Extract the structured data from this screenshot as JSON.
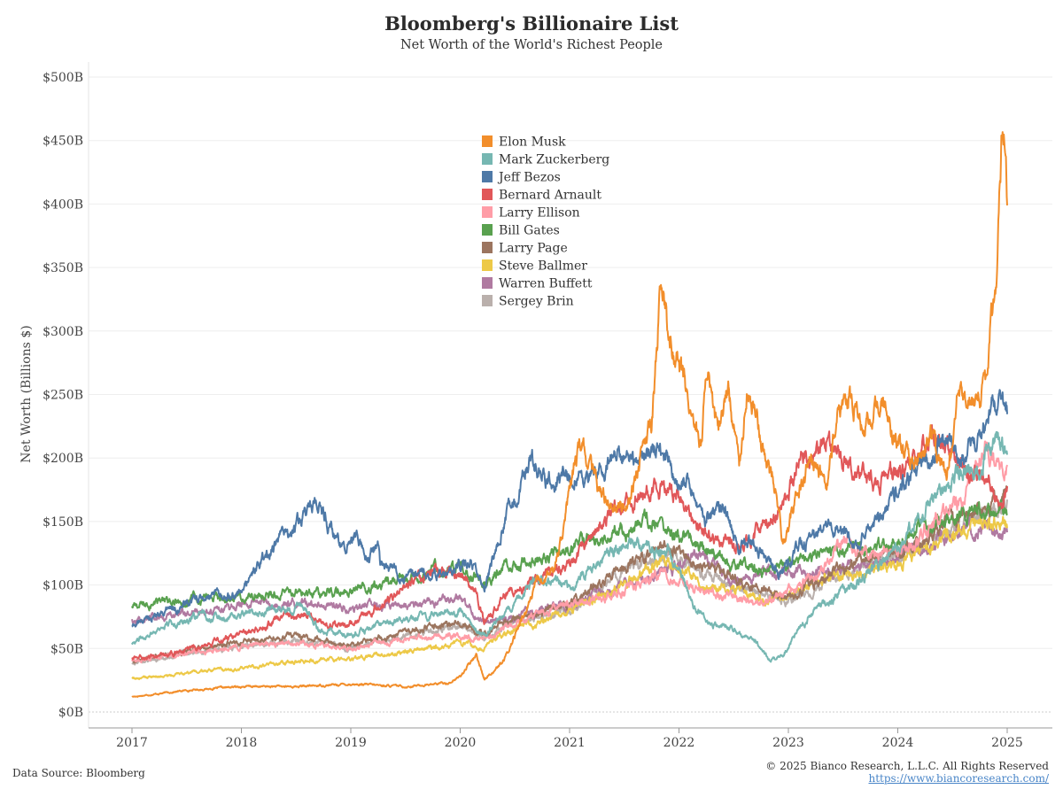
{
  "chart_data": {
    "type": "line",
    "title": "Bloomberg's Billionaire List",
    "subtitle": "Net Worth of the World's Richest People",
    "ylabel": "Net Worth (Billions $)",
    "xlabel": "",
    "xlim": [
      2017.0,
      2025.3
    ],
    "ylim": [
      0,
      500
    ],
    "y_ticks": [
      0,
      50,
      100,
      150,
      200,
      250,
      300,
      350,
      400,
      450,
      500
    ],
    "y_tick_labels": [
      "$0B",
      "$50B",
      "$100B",
      "$150B",
      "$200B",
      "$250B",
      "$300B",
      "$350B",
      "$400B",
      "$450B",
      "$500B"
    ],
    "x_ticks": [
      2017,
      2018,
      2019,
      2020,
      2021,
      2022,
      2023,
      2024,
      2025
    ],
    "x_tick_labels": [
      "2017",
      "2018",
      "2019",
      "2020",
      "2021",
      "2022",
      "2023",
      "2024",
      "2025"
    ],
    "grid": true,
    "legend_position": "top-center",
    "series": [
      {
        "name": "Elon Musk",
        "color": "#f28e2b",
        "x": [
          2017.0,
          2017.5,
          2018.0,
          2018.5,
          2019.0,
          2019.5,
          2019.9,
          2020.0,
          2020.15,
          2020.22,
          2020.4,
          2020.55,
          2020.7,
          2020.85,
          2020.95,
          2021.05,
          2021.1,
          2021.3,
          2021.5,
          2021.65,
          2021.75,
          2021.8,
          2021.83,
          2021.9,
          2022.0,
          2022.1,
          2022.2,
          2022.26,
          2022.35,
          2022.45,
          2022.55,
          2022.62,
          2022.75,
          2022.85,
          2022.9,
          2022.95,
          2023.0,
          2023.1,
          2023.2,
          2023.35,
          2023.45,
          2023.55,
          2023.7,
          2023.85,
          2024.0,
          2024.15,
          2024.3,
          2024.45,
          2024.55,
          2024.62,
          2024.7,
          2024.75,
          2024.8,
          2024.85,
          2024.9,
          2024.93,
          2024.96,
          2025.0
        ],
        "y": [
          12,
          17,
          20,
          20,
          22,
          20,
          23,
          28,
          45,
          26,
          40,
          70,
          100,
          110,
          150,
          195,
          210,
          170,
          160,
          200,
          225,
          290,
          340,
          300,
          275,
          240,
          210,
          270,
          220,
          255,
          195,
          260,
          215,
          185,
          165,
          135,
          145,
          180,
          200,
          180,
          230,
          250,
          220,
          245,
          210,
          190,
          215,
          185,
          250,
          240,
          245,
          250,
          260,
          315,
          345,
          420,
          480,
          415
        ]
      },
      {
        "name": "Mark Zuckerberg",
        "color": "#76b7b2",
        "x": [
          2017.0,
          2017.3,
          2017.6,
          2018.0,
          2018.3,
          2018.55,
          2018.7,
          2019.0,
          2019.3,
          2019.6,
          2020.0,
          2020.2,
          2020.5,
          2020.7,
          2021.0,
          2021.3,
          2021.6,
          2021.75,
          2021.9,
          2022.1,
          2022.3,
          2022.5,
          2022.7,
          2022.83,
          2022.95,
          2023.1,
          2023.3,
          2023.6,
          2023.9,
          2024.1,
          2024.3,
          2024.55,
          2024.75,
          2024.9,
          2025.0
        ],
        "y": [
          55,
          68,
          75,
          75,
          80,
          85,
          65,
          60,
          70,
          75,
          80,
          60,
          85,
          105,
          100,
          120,
          135,
          125,
          130,
          90,
          70,
          65,
          55,
          40,
          45,
          65,
          85,
          100,
          120,
          140,
          170,
          185,
          195,
          215,
          210
        ]
      },
      {
        "name": "Jeff Bezos",
        "color": "#4e79a7",
        "x": [
          2017.0,
          2017.3,
          2017.6,
          2018.0,
          2018.2,
          2018.4,
          2018.55,
          2018.7,
          2018.9,
          2019.05,
          2019.15,
          2019.25,
          2019.27,
          2019.4,
          2019.6,
          2019.9,
          2020.1,
          2020.22,
          2020.4,
          2020.55,
          2020.65,
          2020.8,
          2021.0,
          2021.2,
          2021.45,
          2021.55,
          2021.7,
          2021.85,
          2022.0,
          2022.1,
          2022.25,
          2022.4,
          2022.55,
          2022.65,
          2022.8,
          2022.95,
          2023.1,
          2023.3,
          2023.45,
          2023.6,
          2023.8,
          2024.0,
          2024.2,
          2024.4,
          2024.55,
          2024.7,
          2024.85,
          2024.95,
          2025.0
        ],
        "y": [
          68,
          80,
          88,
          95,
          120,
          140,
          150,
          165,
          130,
          140,
          120,
          135,
          115,
          110,
          105,
          112,
          120,
          100,
          150,
          175,
          200,
          180,
          190,
          185,
          205,
          195,
          200,
          205,
          180,
          180,
          150,
          160,
          130,
          135,
          120,
          110,
          130,
          145,
          145,
          135,
          150,
          175,
          195,
          210,
          200,
          210,
          235,
          250,
          240
        ]
      },
      {
        "name": "Bernard Arnault",
        "color": "#e15759",
        "x": [
          2017.0,
          2017.3,
          2017.6,
          2018.0,
          2018.3,
          2018.6,
          2018.8,
          2019.0,
          2019.3,
          2019.5,
          2019.7,
          2020.0,
          2020.15,
          2020.22,
          2020.4,
          2020.6,
          2020.8,
          2021.0,
          2021.2,
          2021.4,
          2021.6,
          2021.75,
          2021.9,
          2022.05,
          2022.2,
          2022.35,
          2022.5,
          2022.65,
          2022.8,
          2022.95,
          2023.1,
          2023.25,
          2023.35,
          2023.5,
          2023.65,
          2023.8,
          2024.0,
          2024.15,
          2024.3,
          2024.5,
          2024.65,
          2024.8,
          2024.95,
          2025.0
        ],
        "y": [
          42,
          45,
          50,
          62,
          72,
          78,
          68,
          70,
          85,
          100,
          110,
          110,
          95,
          70,
          90,
          100,
          110,
          115,
          140,
          160,
          170,
          175,
          175,
          165,
          140,
          135,
          130,
          135,
          150,
          165,
          200,
          205,
          215,
          200,
          185,
          180,
          190,
          200,
          220,
          205,
          190,
          185,
          165,
          175
        ]
      },
      {
        "name": "Larry Ellison",
        "color": "#ff9da7",
        "x": [
          2017.0,
          2017.5,
          2018.0,
          2018.5,
          2019.0,
          2019.5,
          2020.0,
          2020.2,
          2020.5,
          2021.0,
          2021.5,
          2021.9,
          2022.2,
          2022.5,
          2022.8,
          2023.0,
          2023.3,
          2023.5,
          2023.8,
          2024.0,
          2024.3,
          2024.6,
          2024.8,
          2024.95,
          2025.0
        ],
        "y": [
          40,
          47,
          52,
          55,
          50,
          57,
          60,
          57,
          70,
          85,
          95,
          110,
          95,
          90,
          85,
          95,
          110,
          135,
          125,
          125,
          145,
          170,
          210,
          190,
          190
        ]
      },
      {
        "name": "Bill Gates",
        "color": "#59a14f",
        "x": [
          2017.0,
          2017.5,
          2018.0,
          2018.5,
          2019.0,
          2019.5,
          2020.0,
          2020.2,
          2020.4,
          2020.7,
          2021.0,
          2021.4,
          2021.7,
          2021.9,
          2022.1,
          2022.4,
          2022.6,
          2022.8,
          2023.0,
          2023.3,
          2023.6,
          2023.9,
          2024.2,
          2024.5,
          2024.8,
          2024.95,
          2025.0
        ],
        "y": [
          83,
          88,
          90,
          95,
          95,
          105,
          115,
          100,
          115,
          120,
          130,
          140,
          150,
          140,
          135,
          120,
          115,
          110,
          115,
          125,
          130,
          130,
          145,
          150,
          160,
          160,
          158
        ]
      },
      {
        "name": "Larry Page",
        "color": "#9c755f",
        "x": [
          2017.0,
          2017.5,
          2018.0,
          2018.5,
          2019.0,
          2019.5,
          2020.0,
          2020.2,
          2020.5,
          2021.0,
          2021.5,
          2021.9,
          2022.2,
          2022.5,
          2022.8,
          2023.0,
          2023.3,
          2023.6,
          2023.9,
          2024.2,
          2024.5,
          2024.8,
          2024.95,
          2025.0
        ],
        "y": [
          40,
          48,
          55,
          60,
          52,
          63,
          70,
          60,
          75,
          85,
          115,
          130,
          115,
          105,
          95,
          90,
          105,
          120,
          125,
          135,
          150,
          160,
          170,
          175
        ]
      },
      {
        "name": "Steve Ballmer",
        "color": "#edc948",
        "x": [
          2017.0,
          2017.5,
          2018.0,
          2018.5,
          2019.0,
          2019.5,
          2020.0,
          2020.2,
          2020.5,
          2021.0,
          2021.5,
          2021.9,
          2022.2,
          2022.5,
          2022.8,
          2023.0,
          2023.3,
          2023.6,
          2023.9,
          2024.2,
          2024.5,
          2024.8,
          2024.95,
          2025.0
        ],
        "y": [
          26,
          30,
          35,
          40,
          42,
          47,
          55,
          50,
          65,
          80,
          100,
          120,
          100,
          95,
          90,
          90,
          105,
          110,
          115,
          125,
          140,
          150,
          150,
          145
        ]
      },
      {
        "name": "Warren Buffett",
        "color": "#b07aa1",
        "x": [
          2017.0,
          2017.5,
          2018.0,
          2018.5,
          2019.0,
          2019.5,
          2020.0,
          2020.2,
          2020.5,
          2021.0,
          2021.5,
          2021.9,
          2022.2,
          2022.5,
          2022.8,
          2023.0,
          2023.3,
          2023.6,
          2023.9,
          2024.2,
          2024.5,
          2024.8,
          2024.95,
          2025.0
        ],
        "y": [
          72,
          78,
          85,
          85,
          82,
          85,
          90,
          70,
          75,
          85,
          100,
          110,
          125,
          100,
          110,
          110,
          110,
          115,
          120,
          130,
          140,
          145,
          140,
          142
        ]
      },
      {
        "name": "Sergey Brin",
        "color": "#bab0ac",
        "x": [
          2017.0,
          2017.5,
          2018.0,
          2018.5,
          2019.0,
          2019.5,
          2020.0,
          2020.2,
          2020.5,
          2021.0,
          2021.5,
          2021.9,
          2022.2,
          2022.5,
          2022.8,
          2023.0,
          2023.3,
          2023.6,
          2023.9,
          2024.2,
          2024.5,
          2024.8,
          2024.95,
          2025.0
        ],
        "y": [
          38,
          46,
          52,
          57,
          50,
          60,
          68,
          58,
          72,
          80,
          110,
          125,
          110,
          100,
          92,
          88,
          100,
          115,
          120,
          130,
          145,
          155,
          160,
          165
        ]
      }
    ]
  },
  "footer": {
    "source": "Data Source: Bloomberg",
    "copyright": "© 2025 Bianco Research, L.L.C. All Rights Reserved",
    "url": "https://www.biancoresearch.com/"
  }
}
